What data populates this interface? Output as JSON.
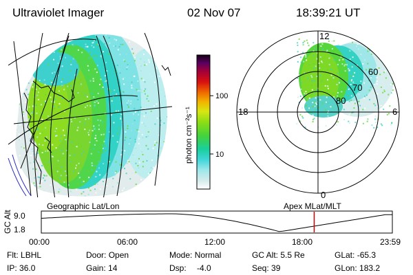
{
  "header": {
    "instrument": "Ultraviolet Imager",
    "date": "02 Nov 07",
    "time": "18:39:21 UT"
  },
  "colorbar": {
    "label": "photon cm⁻²s⁻¹",
    "ticks": [
      {
        "value": 100,
        "label": "100"
      },
      {
        "value": 10,
        "label": "10"
      }
    ],
    "range": [
      2.5,
      500
    ]
  },
  "geo_map": {
    "caption": "Geographic Lat/Lon"
  },
  "polar_plot": {
    "caption": "Apex MLat/MLT",
    "mlt_labels": {
      "top": "12",
      "left": "18",
      "right": "6",
      "bottom": "0"
    },
    "lat_labels": [
      "60",
      "70",
      "80"
    ]
  },
  "altitude_plot": {
    "axis_label": "GC Alt",
    "y_ticks": [
      "9.0",
      "1.8"
    ],
    "x_ticks": [
      "00:00",
      "06:00",
      "12:00",
      "18:00",
      "23:59"
    ],
    "current_time_hours": 18.656,
    "marker_color": "#cc0000"
  },
  "status": {
    "row1": [
      {
        "key": "Flt:",
        "val": "LBHL"
      },
      {
        "key": "Door:",
        "val": "Open"
      },
      {
        "key": "Mode:",
        "val": "Normal"
      },
      {
        "key": "GC Alt:",
        "val": "5.5 Re"
      },
      {
        "key": "GLat:",
        "val": "-65.3"
      }
    ],
    "row2": [
      {
        "key": "IP:",
        "val": "36.0"
      },
      {
        "key": "Gain:",
        "val": "14"
      },
      {
        "key": "Dsp:",
        "val": "-4.0"
      },
      {
        "key": "Seq:",
        "val": "39"
      },
      {
        "key": "GLon:",
        "val": "183.2"
      }
    ]
  }
}
